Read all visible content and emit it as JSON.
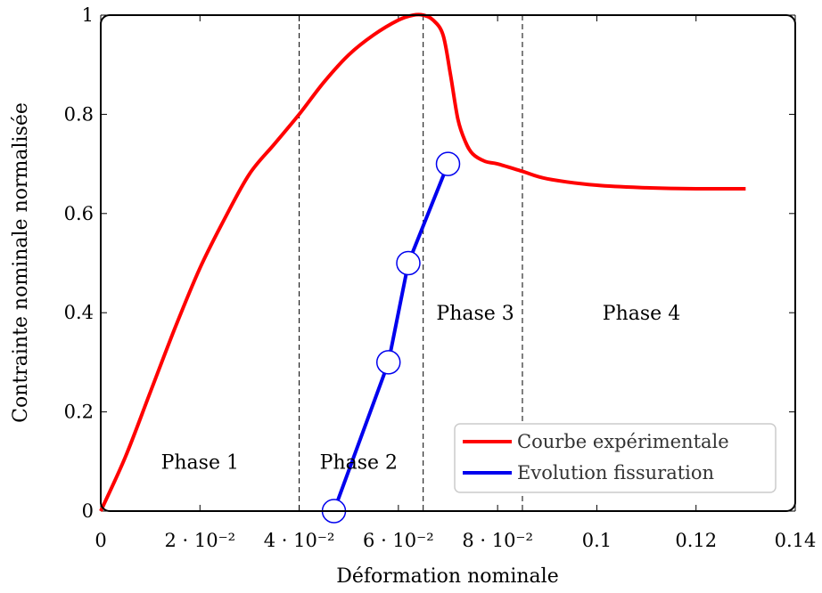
{
  "chart_data": {
    "type": "line",
    "xlabel": "Déformation nominale",
    "ylabel": "Contrainte nominale normalisée",
    "xlim": [
      0,
      0.14
    ],
    "ylim": [
      0,
      1
    ],
    "grid": false,
    "legend_position": "bottom-right",
    "x_ticks": [
      {
        "value": 0,
        "label": "0"
      },
      {
        "value": 0.02,
        "label": "2 · 10⁻²"
      },
      {
        "value": 0.04,
        "label": "4 · 10⁻²"
      },
      {
        "value": 0.06,
        "label": "6 · 10⁻²"
      },
      {
        "value": 0.08,
        "label": "8 · 10⁻²"
      },
      {
        "value": 0.1,
        "label": "0.1"
      },
      {
        "value": 0.12,
        "label": "0.12"
      },
      {
        "value": 0.14,
        "label": "0.14"
      }
    ],
    "y_ticks": [
      {
        "value": 0,
        "label": "0"
      },
      {
        "value": 0.2,
        "label": "0.2"
      },
      {
        "value": 0.4,
        "label": "0.4"
      },
      {
        "value": 0.6,
        "label": "0.6"
      },
      {
        "value": 0.8,
        "label": "0.8"
      },
      {
        "value": 1,
        "label": "1"
      }
    ],
    "phase_boundaries": [
      0.04,
      0.065,
      0.085
    ],
    "phases": [
      {
        "label": "Phase 1",
        "x": 0.02,
        "y": 0.1
      },
      {
        "label": "Phase 2",
        "x": 0.052,
        "y": 0.1
      },
      {
        "label": "Phase 3",
        "x": 0.0755,
        "y": 0.4
      },
      {
        "label": "Phase 4",
        "x": 0.109,
        "y": 0.4
      }
    ],
    "series": [
      {
        "name": "Courbe expérimentale",
        "color": "#ff0000",
        "marker": "none",
        "x": [
          0,
          0.005,
          0.01,
          0.015,
          0.02,
          0.025,
          0.03,
          0.035,
          0.04,
          0.045,
          0.05,
          0.055,
          0.06,
          0.063,
          0.065,
          0.067,
          0.069,
          0.0705,
          0.072,
          0.0735,
          0.075,
          0.0775,
          0.08,
          0.085,
          0.09,
          0.1,
          0.11,
          0.12,
          0.13
        ],
        "y": [
          0,
          0.11,
          0.24,
          0.37,
          0.49,
          0.59,
          0.68,
          0.74,
          0.8,
          0.865,
          0.92,
          0.96,
          0.99,
          1.0,
          1.0,
          0.99,
          0.96,
          0.88,
          0.79,
          0.745,
          0.72,
          0.705,
          0.7,
          0.685,
          0.67,
          0.657,
          0.652,
          0.65,
          0.65
        ]
      },
      {
        "name": "Evolution fissuration",
        "color": "#0000ee",
        "marker": "circle",
        "x": [
          0.047,
          0.058,
          0.062,
          0.07
        ],
        "y": [
          0,
          0.3,
          0.5,
          0.7
        ]
      }
    ]
  }
}
